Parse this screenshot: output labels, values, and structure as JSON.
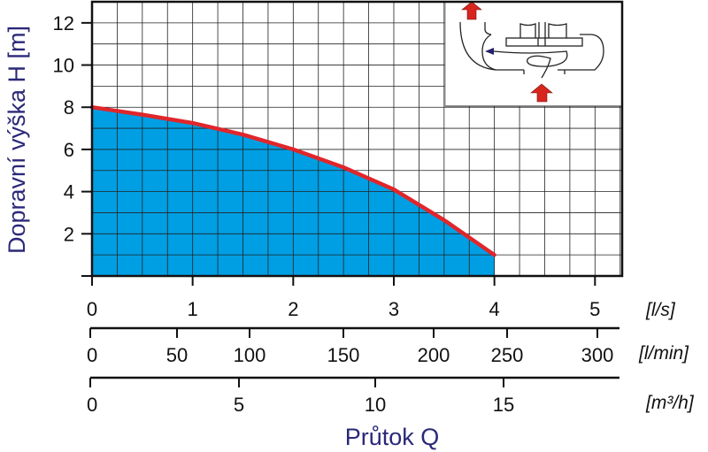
{
  "chart_data": {
    "type": "area",
    "title": "",
    "ylabel": "Dopravní výška H [m]",
    "xlabel": "Průtok Q",
    "ylim": [
      0,
      13
    ],
    "xlim": [
      0,
      5.27
    ],
    "grid": true,
    "y_ticks": [
      "2",
      "4",
      "6",
      "8",
      "10",
      "12"
    ],
    "x_axes": [
      {
        "unit": "[l/s]",
        "ticks": [
          "0",
          "1",
          "2",
          "3",
          "4",
          "5"
        ]
      },
      {
        "unit": "[l/min]",
        "ticks": [
          "0",
          "50",
          "100",
          "150",
          "200",
          "250",
          "300"
        ]
      },
      {
        "unit": "[m³/h]",
        "ticks": [
          "0",
          "5",
          "10",
          "15"
        ]
      }
    ],
    "series": [
      {
        "x": [
          0,
          0.5,
          1,
          1.5,
          2,
          2.5,
          3,
          3.5,
          4
        ],
        "y": [
          8.0,
          7.65,
          7.25,
          6.7,
          6.0,
          5.15,
          4.1,
          2.65,
          1.0
        ]
      }
    ],
    "colors": {
      "fill": "#009fe3",
      "curve": "#e0262b",
      "grid": "#222222",
      "axis_title": "#2b2878",
      "arrows": "#d7261e"
    },
    "inset": "pump-impeller-diagram"
  }
}
